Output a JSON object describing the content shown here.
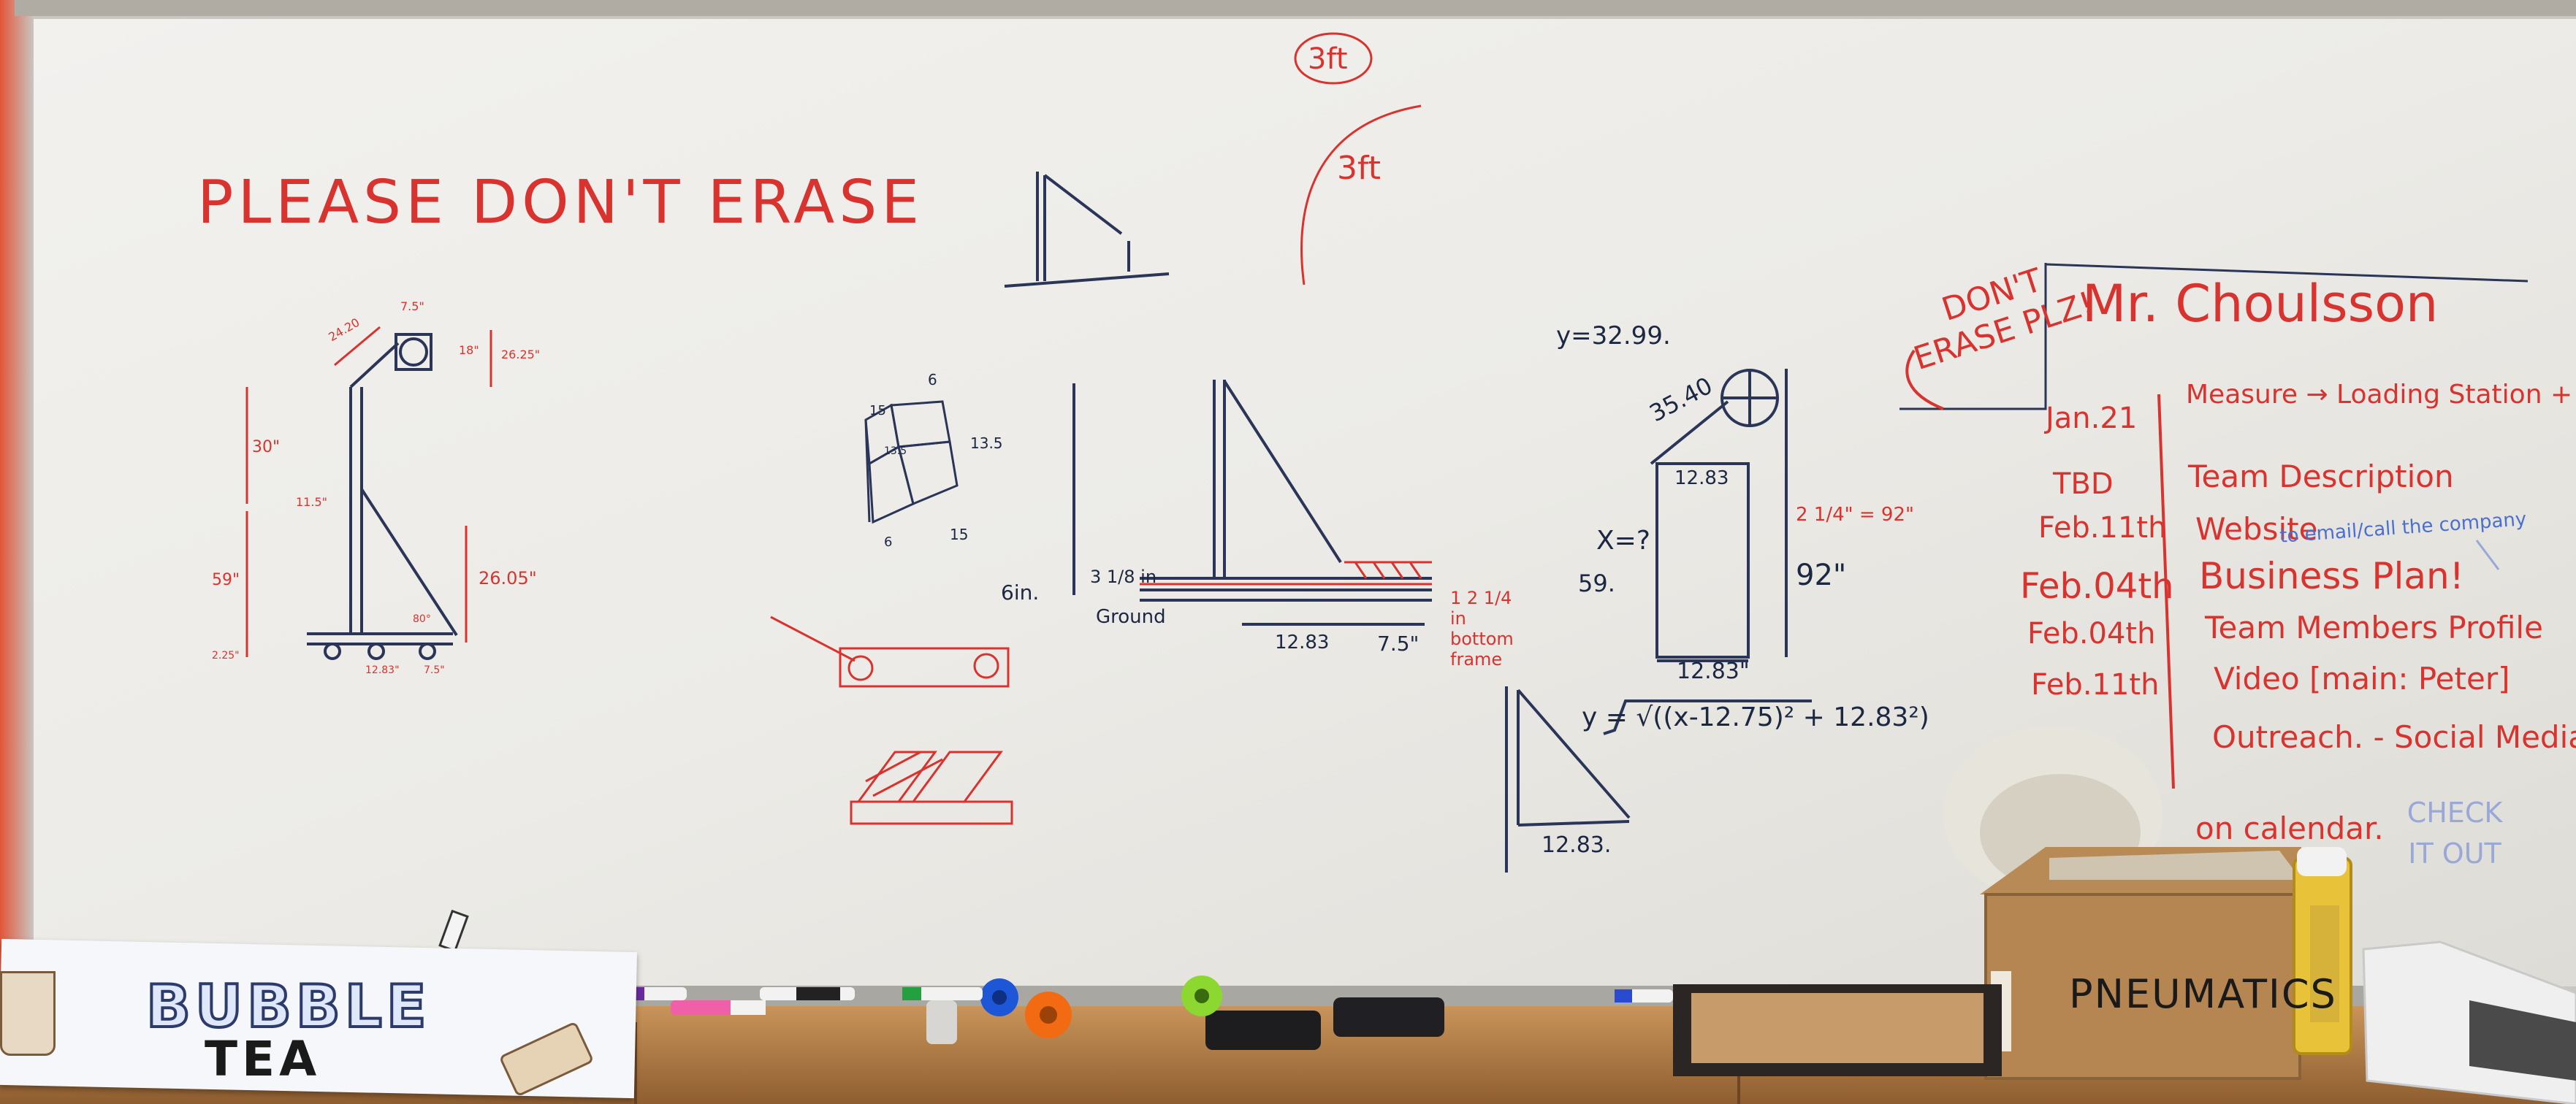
{
  "board": {
    "title": "PLEASE DON'T ERASE",
    "top_note_1": "3ft",
    "top_note_2": "3ft",
    "dont_erase_note": "DON'T ERASE PLZ!",
    "teacher": "Mr. Choulsson",
    "schedule": [
      {
        "date": "Jan.21",
        "task": "Measure → Loading Station + Cut"
      },
      {
        "date": "TBD",
        "task": "Team Description"
      },
      {
        "date": "Feb.11th",
        "task": "Website"
      },
      {
        "date": "Feb.04th",
        "task": "Business Plan!"
      },
      {
        "date": "Feb.04th",
        "task": "Team Members Profile"
      },
      {
        "date": "Feb.11th",
        "task": "Video [main: Peter]"
      },
      {
        "date": "",
        "task": "Outreach. - Social Media"
      }
    ],
    "schedule_note": "to email/call the company",
    "calendar_note": "on calendar.",
    "check_note": "CHECK IT OUT",
    "measurements": {
      "y_value": "y=32.99.",
      "slant": "35.40",
      "x_unknown": "X=?",
      "fifty_nine": "59.",
      "rect_top": "12.83",
      "rect_height": "92\"",
      "rect_bottom": "12.83\"",
      "red_side": "2 1/4\" = 92\"",
      "formula": "y = √((x-12.75)² + 12.83²)",
      "tri_bottom": "12.83.",
      "frame_bottom_a": "12.83",
      "frame_bottom_b": "7.5\"",
      "frame_ground": "Ground",
      "frame_six": "6in.",
      "frame_three": "3 1/8 in",
      "frame_red_note": "1 2 1/4 in bottom frame",
      "cube_labels": [
        "6",
        "15",
        "13.5",
        "13.5",
        "15",
        "6"
      ],
      "stand_labels": [
        "24.20",
        "7.5\"",
        "18\"",
        "26.25\"",
        "30\"",
        "11.5\"",
        "59\"",
        "26.05\"",
        "2.25\"",
        "12.83\"",
        "7.5\"",
        "80°"
      ]
    }
  },
  "objects": {
    "banner_line1": "BUBBLE",
    "banner_line2": "TEA",
    "box_label": "PNEUMATICS"
  }
}
